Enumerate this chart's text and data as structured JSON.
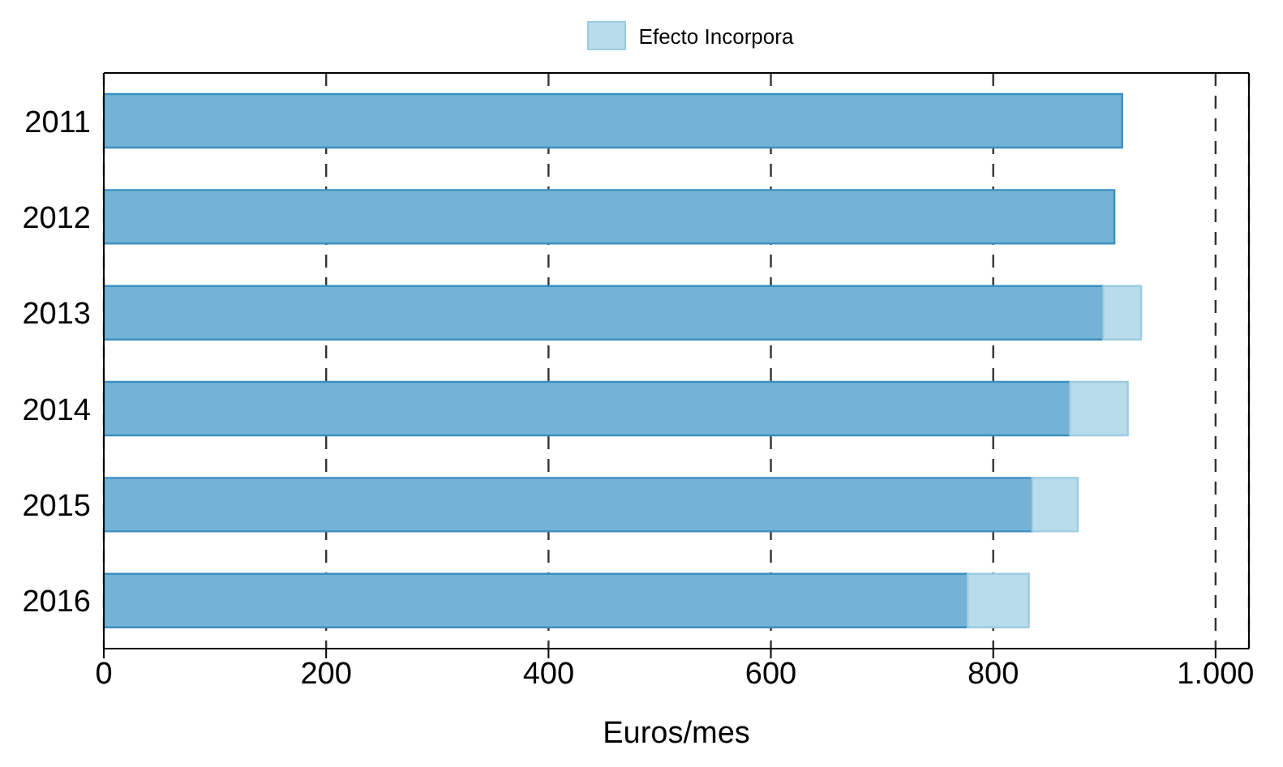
{
  "chart_data": {
    "type": "bar",
    "orientation": "horizontal",
    "stacked": true,
    "categories": [
      "2011",
      "2012",
      "2013",
      "2014",
      "2015",
      "2016"
    ],
    "series": [
      {
        "color": "#74b3d5",
        "values": [
          916,
          909,
          899,
          869,
          835,
          777
        ]
      },
      {
        "name": "Efecto Incorpora",
        "color": "#b9dcea",
        "values": [
          0,
          0,
          34,
          52,
          41,
          55
        ]
      }
    ],
    "xlabel": "Euros/mes",
    "xlim": [
      0,
      1030
    ],
    "xticks": [
      0,
      200,
      400,
      600,
      800,
      {
        "value": 1000,
        "label": "1.000"
      }
    ],
    "grid": "x",
    "legend": "top"
  }
}
